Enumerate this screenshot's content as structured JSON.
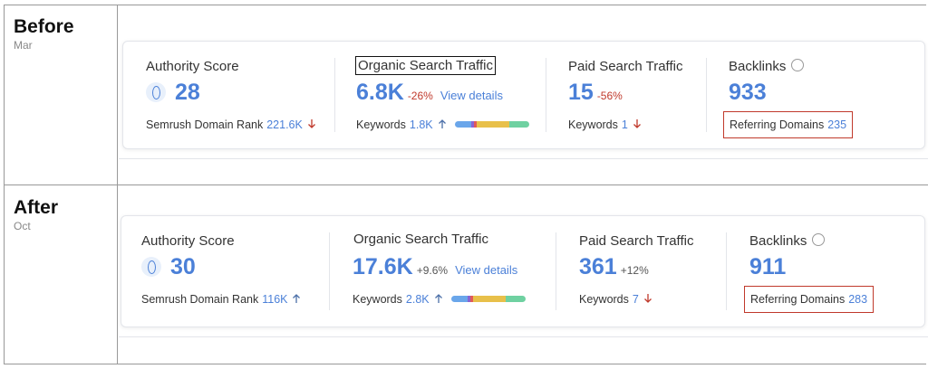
{
  "rows": [
    {
      "label": "Before",
      "period": "Mar",
      "authority": {
        "title": "Authority Score",
        "value": "28",
        "rank_label": "Semrush Domain Rank",
        "rank_value": "221.6K"
      },
      "organic": {
        "title": "Organic Search Traffic",
        "value": "6.8K",
        "change": "-26%",
        "link": "View details",
        "keywords_label": "Keywords",
        "keywords_value": "1.8K"
      },
      "paid": {
        "title": "Paid Search Traffic",
        "value": "15",
        "change": "-56%",
        "keywords_label": "Keywords",
        "keywords_value": "1"
      },
      "backlinks": {
        "title": "Backlinks",
        "value": "933",
        "domains_label": "Referring Domains",
        "domains_value": "235"
      }
    },
    {
      "label": "After",
      "period": "Oct",
      "authority": {
        "title": "Authority Score",
        "value": "30",
        "rank_label": "Semrush Domain Rank",
        "rank_value": "116K"
      },
      "organic": {
        "title": "Organic Search Traffic",
        "value": "17.6K",
        "change": "+9.6%",
        "link": "View details",
        "keywords_label": "Keywords",
        "keywords_value": "2.8K"
      },
      "paid": {
        "title": "Paid Search Traffic",
        "value": "361",
        "change": "+12%",
        "keywords_label": "Keywords",
        "keywords_value": "7"
      },
      "backlinks": {
        "title": "Backlinks",
        "value": "911",
        "domains_label": "Referring Domains",
        "domains_value": "283"
      }
    }
  ]
}
